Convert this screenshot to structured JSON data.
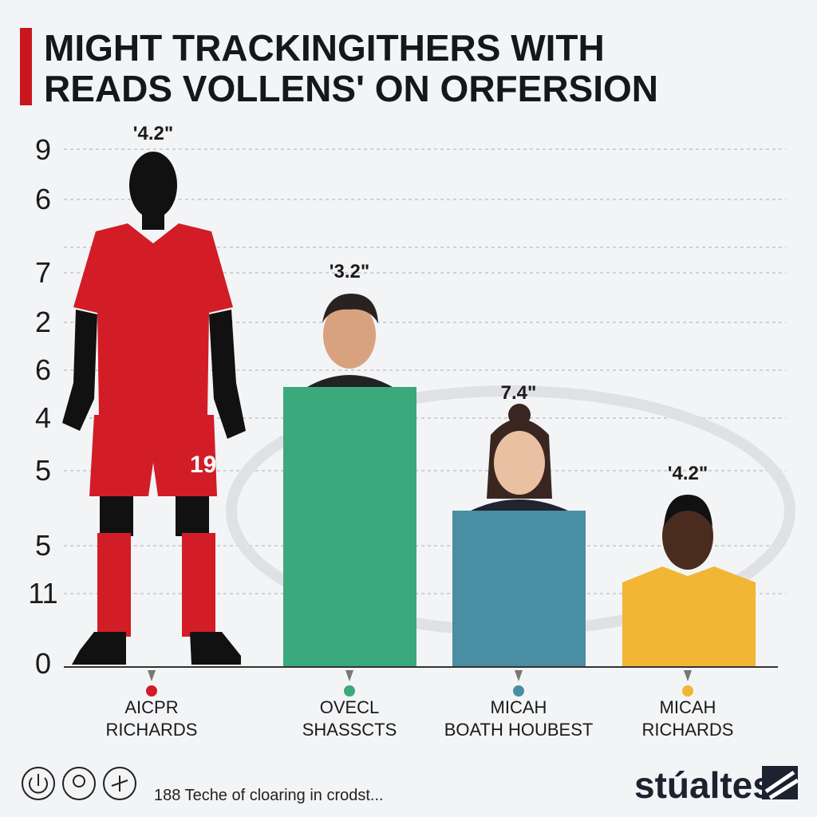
{
  "header": {
    "title_lines": [
      "MIGHT TRACKINGITHERS WITH",
      "READS VOLLENS' ON ORFERSION"
    ]
  },
  "axis_labels": [
    "9",
    "6",
    "7",
    "2",
    "6",
    "4",
    "5",
    "5",
    "11",
    "0"
  ],
  "columns": [
    {
      "value_label": "'4.2\"",
      "name_lines": [
        "AICPR",
        "RICHARDS"
      ]
    },
    {
      "value_label": "'3.2\"",
      "name_lines": [
        "OVECL",
        "SHASSCTS"
      ]
    },
    {
      "value_label": "7.4\"",
      "name_lines": [
        "MICAH",
        "BOATH HOUBEST"
      ]
    },
    {
      "value_label": "'4.2\"",
      "name_lines": [
        "MICAH",
        "RICHARDS"
      ]
    }
  ],
  "footer": {
    "caption": "188 Teche of cloaring in crodst...",
    "brand": "stúaltes"
  }
}
